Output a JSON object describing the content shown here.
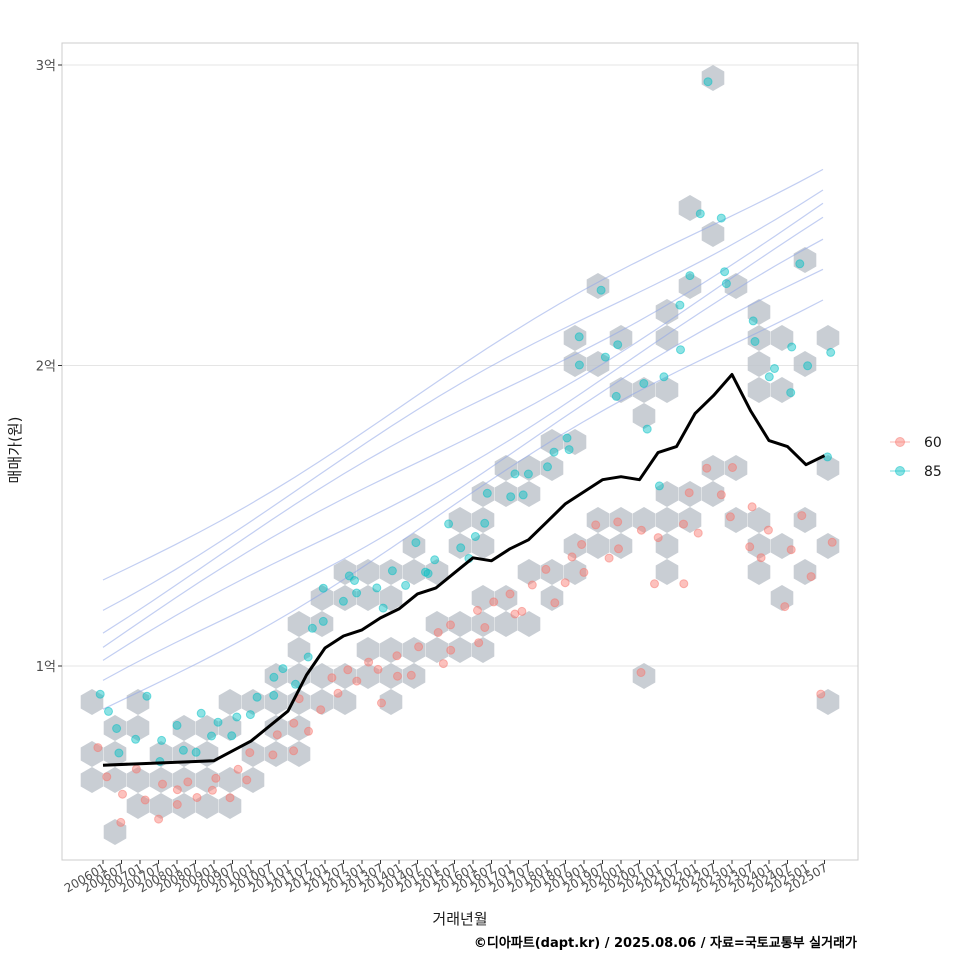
{
  "chart_data": {
    "type": "scatter",
    "xlabel": "거래년월",
    "ylabel": "매매가(원)",
    "caption": "©디아파트(dapt.kr) / 2025.08.06 / 자료=국토교통부 실거래가",
    "x_ticks": [
      "200601",
      "200607",
      "200701",
      "200707",
      "200801",
      "200807",
      "200901",
      "200907",
      "201001",
      "201007",
      "201101",
      "201107",
      "201201",
      "201207",
      "201301",
      "201307",
      "201401",
      "201407",
      "201501",
      "201507",
      "201601",
      "201607",
      "201701",
      "201707",
      "201801",
      "201807",
      "201901",
      "201907",
      "202001",
      "202007",
      "202101",
      "202107",
      "202201",
      "202207",
      "202301",
      "202307",
      "202401",
      "202407",
      "202501",
      "202507"
    ],
    "y_ticks": [
      {
        "value": 100000000,
        "label": "1억"
      },
      {
        "value": 200000000,
        "label": "2억"
      },
      {
        "value": 300000000,
        "label": "3억"
      }
    ],
    "ylim": [
      40000000,
      310000000
    ],
    "grid": true,
    "legend_position": "right",
    "legend": [
      {
        "name": "60",
        "color": "#F8766D"
      },
      {
        "name": "85",
        "color": "#00BFC4"
      }
    ],
    "trend_line": {
      "color": "#000000",
      "points": [
        [
          "200601",
          67000000
        ],
        [
          "200701",
          67500000
        ],
        [
          "200801",
          68000000
        ],
        [
          "200901",
          68500000
        ],
        [
          "201001",
          75000000
        ],
        [
          "201007",
          80000000
        ],
        [
          "201101",
          85000000
        ],
        [
          "201107",
          97000000
        ],
        [
          "201201",
          106000000
        ],
        [
          "201207",
          110000000
        ],
        [
          "201301",
          112000000
        ],
        [
          "201307",
          116000000
        ],
        [
          "201401",
          119000000
        ],
        [
          "201407",
          124000000
        ],
        [
          "201501",
          126000000
        ],
        [
          "201507",
          131000000
        ],
        [
          "201601",
          136000000
        ],
        [
          "201607",
          135000000
        ],
        [
          "201701",
          139000000
        ],
        [
          "201707",
          142000000
        ],
        [
          "201801",
          148000000
        ],
        [
          "201807",
          154000000
        ],
        [
          "201901",
          158000000
        ],
        [
          "201907",
          162000000
        ],
        [
          "202001",
          163000000
        ],
        [
          "202007",
          162000000
        ],
        [
          "202101",
          171000000
        ],
        [
          "202107",
          173000000
        ],
        [
          "202201",
          184000000
        ],
        [
          "202207",
          190000000
        ],
        [
          "202301",
          197000000
        ],
        [
          "202307",
          185000000
        ],
        [
          "202401",
          175000000
        ],
        [
          "202407",
          173000000
        ],
        [
          "202501",
          167000000
        ],
        [
          "202507",
          170000000
        ]
      ]
    },
    "series": [
      {
        "name": "60",
        "points": [
          [
            "200601",
            72000000
          ],
          [
            "200601",
            63000000
          ],
          [
            "200607",
            58000000
          ],
          [
            "200607",
            48000000
          ],
          [
            "200701",
            66000000
          ],
          [
            "200701",
            55000000
          ],
          [
            "200707",
            62000000
          ],
          [
            "200707",
            50000000
          ],
          [
            "200801",
            60000000
          ],
          [
            "200801",
            53000000
          ],
          [
            "200807",
            61000000
          ],
          [
            "200807",
            56000000
          ],
          [
            "200901",
            63000000
          ],
          [
            "200901",
            58000000
          ],
          [
            "200907",
            66000000
          ],
          [
            "200907",
            57000000
          ],
          [
            "201001",
            71000000
          ],
          [
            "201001",
            62000000
          ],
          [
            "201007",
            76000000
          ],
          [
            "201007",
            70000000
          ],
          [
            "201101",
            81000000
          ],
          [
            "201101",
            73000000
          ],
          [
            "201107",
            88000000
          ],
          [
            "201107",
            78000000
          ],
          [
            "201201",
            96000000
          ],
          [
            "201201",
            85000000
          ],
          [
            "201207",
            100000000
          ],
          [
            "201207",
            91000000
          ],
          [
            "201301",
            102000000
          ],
          [
            "201301",
            94000000
          ],
          [
            "201307",
            98000000
          ],
          [
            "201307",
            88000000
          ],
          [
            "201401",
            103000000
          ],
          [
            "201401",
            96000000
          ],
          [
            "201407",
            106000000
          ],
          [
            "201407",
            98000000
          ],
          [
            "201501",
            110000000
          ],
          [
            "201501",
            101000000
          ],
          [
            "201507",
            114000000
          ],
          [
            "201507",
            104000000
          ],
          [
            "201601",
            118000000
          ],
          [
            "201601",
            108000000
          ],
          [
            "201607",
            122000000
          ],
          [
            "201607",
            112000000
          ],
          [
            "201701",
            125000000
          ],
          [
            "201701",
            116000000
          ],
          [
            "201707",
            127000000
          ],
          [
            "201707",
            117000000
          ],
          [
            "201801",
            131000000
          ],
          [
            "201801",
            121000000
          ],
          [
            "201807",
            136000000
          ],
          [
            "201807",
            127000000
          ],
          [
            "201901",
            140000000
          ],
          [
            "201901",
            130000000
          ],
          [
            "201907",
            146000000
          ],
          [
            "201907",
            136000000
          ],
          [
            "202001",
            147000000
          ],
          [
            "202001",
            138000000
          ],
          [
            "202007",
            146000000
          ],
          [
            "202007",
            99000000
          ],
          [
            "202101",
            142000000
          ],
          [
            "202101",
            128000000
          ],
          [
            "202107",
            148000000
          ],
          [
            "202107",
            128000000
          ],
          [
            "202201",
            158000000
          ],
          [
            "202201",
            145000000
          ],
          [
            "202207",
            166000000
          ],
          [
            "202207",
            157000000
          ],
          [
            "202301",
            165000000
          ],
          [
            "202301",
            150000000
          ],
          [
            "202307",
            152000000
          ],
          [
            "202307",
            139000000
          ],
          [
            "202401",
            145000000
          ],
          [
            "202401",
            135000000
          ],
          [
            "202407",
            140000000
          ],
          [
            "202407",
            120000000
          ],
          [
            "202501",
            150000000
          ],
          [
            "202501",
            130000000
          ],
          [
            "202507",
            142000000
          ],
          [
            "202507",
            90000000
          ]
        ]
      },
      {
        "name": "85",
        "points": [
          [
            "200601",
            91000000
          ],
          [
            "200601",
            84000000
          ],
          [
            "200607",
            78000000
          ],
          [
            "200607",
            70000000
          ],
          [
            "200701",
            90000000
          ],
          [
            "200701",
            76000000
          ],
          [
            "200707",
            74000000
          ],
          [
            "200707",
            68000000
          ],
          [
            "200801",
            79000000
          ],
          [
            "200801",
            72000000
          ],
          [
            "200807",
            83000000
          ],
          [
            "200807",
            71000000
          ],
          [
            "200901",
            80000000
          ],
          [
            "200901",
            76000000
          ],
          [
            "200907",
            84000000
          ],
          [
            "200907",
            77000000
          ],
          [
            "201001",
            89000000
          ],
          [
            "201001",
            84000000
          ],
          [
            "201007",
            97000000
          ],
          [
            "201007",
            89000000
          ],
          [
            "201101",
            100000000
          ],
          [
            "201101",
            94000000
          ],
          [
            "201107",
            113000000
          ],
          [
            "201107",
            104000000
          ],
          [
            "201201",
            125000000
          ],
          [
            "201201",
            116000000
          ],
          [
            "201207",
            131000000
          ],
          [
            "201207",
            122000000
          ],
          [
            "201301",
            129000000
          ],
          [
            "201301",
            123000000
          ],
          [
            "201307",
            127000000
          ],
          [
            "201307",
            120000000
          ],
          [
            "201401",
            132000000
          ],
          [
            "201401",
            127000000
          ],
          [
            "201407",
            140000000
          ],
          [
            "201407",
            131000000
          ],
          [
            "201501",
            135000000
          ],
          [
            "201501",
            130000000
          ],
          [
            "201507",
            148000000
          ],
          [
            "201507",
            140000000
          ],
          [
            "201601",
            142000000
          ],
          [
            "201601",
            136000000
          ],
          [
            "201607",
            158000000
          ],
          [
            "201607",
            148000000
          ],
          [
            "201701",
            163000000
          ],
          [
            "201701",
            156000000
          ],
          [
            "201707",
            165000000
          ],
          [
            "201707",
            158000000
          ],
          [
            "201801",
            172000000
          ],
          [
            "201801",
            166000000
          ],
          [
            "201807",
            176000000
          ],
          [
            "201807",
            172000000
          ],
          [
            "201901",
            199000000
          ],
          [
            "201901",
            210000000
          ],
          [
            "201907",
            203000000
          ],
          [
            "201907",
            226000000
          ],
          [
            "202001",
            191000000
          ],
          [
            "202001",
            208000000
          ],
          [
            "202007",
            180000000
          ],
          [
            "202007",
            195000000
          ],
          [
            "202101",
            196000000
          ],
          [
            "202101",
            160000000
          ],
          [
            "202107",
            220000000
          ],
          [
            "202107",
            205000000
          ],
          [
            "202201",
            230000000
          ],
          [
            "202201",
            250000000
          ],
          [
            "202207",
            295000000
          ],
          [
            "202207",
            248000000
          ],
          [
            "202301",
            230000000
          ],
          [
            "202301",
            226000000
          ],
          [
            "202307",
            215000000
          ],
          [
            "202307",
            208000000
          ],
          [
            "202401",
            199000000
          ],
          [
            "202401",
            195000000
          ],
          [
            "202407",
            205000000
          ],
          [
            "202407",
            190000000
          ],
          [
            "202501",
            233000000
          ],
          [
            "202501",
            200000000
          ],
          [
            "202507",
            205000000
          ],
          [
            "202507",
            170000000
          ]
        ]
      }
    ]
  }
}
